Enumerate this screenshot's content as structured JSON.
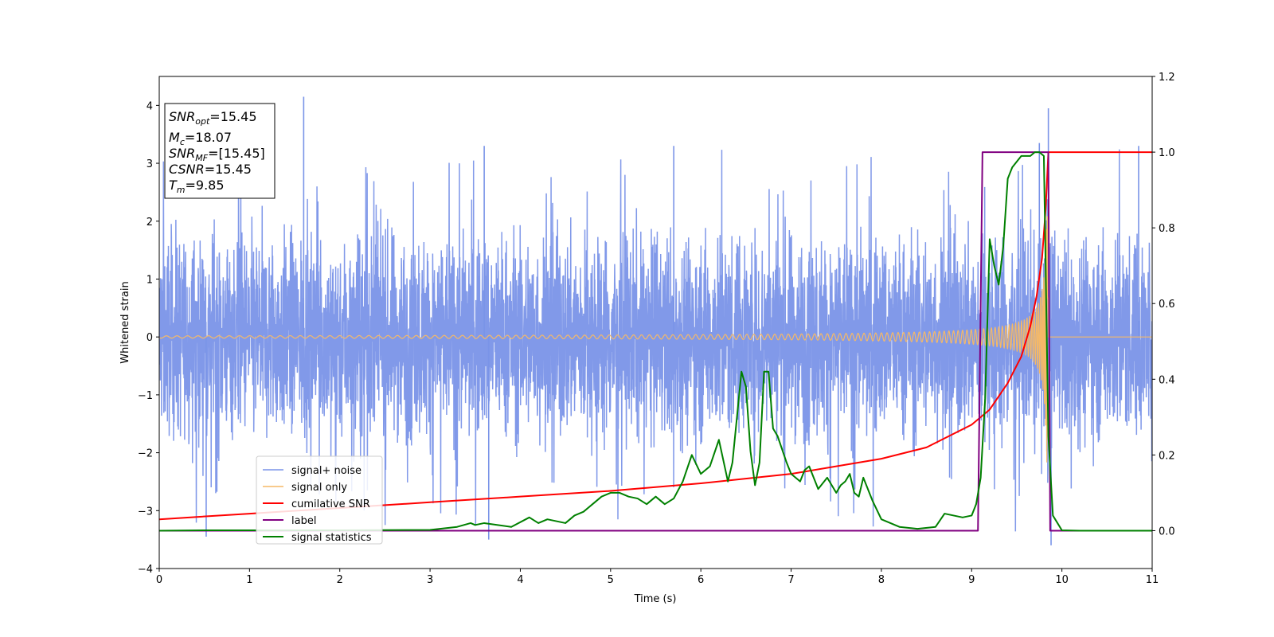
{
  "chart_data": {
    "type": "line",
    "xlabel": "Time (s)",
    "ylabel": "Whitened strain",
    "xlim": [
      0,
      11
    ],
    "ylim_left": [
      -4,
      4.5
    ],
    "ylim_right": [
      -0.1,
      1.2
    ],
    "x_ticks": [
      "0",
      "1",
      "2",
      "3",
      "4",
      "5",
      "6",
      "7",
      "8",
      "9",
      "10",
      "11"
    ],
    "y_ticks_left": [
      "−4",
      "−3",
      "−2",
      "−1",
      "0",
      "1",
      "2",
      "3",
      "4"
    ],
    "y_ticks_right": [
      "0.0",
      "0.2",
      "0.4",
      "0.6",
      "0.8",
      "1.0",
      "1.2"
    ],
    "grid": false,
    "legend_placement": "lower-left",
    "info_box": {
      "snr_opt": {
        "base": "SNR",
        "sub": "opt",
        "value": "=15.45"
      },
      "mc": {
        "base": "M",
        "sub": "c",
        "value": "=18.07"
      },
      "snr_mf": {
        "base": "SNR",
        "sub": "MF",
        "value": "=[15.45]"
      },
      "csnr": {
        "base": "CSNR",
        "sub": "",
        "value": "=15.45"
      },
      "tm": {
        "base": "T",
        "sub": "m",
        "value": "=9.85"
      }
    },
    "series": [
      {
        "name": "signal+ noise",
        "axis": "left",
        "color": "#7a94e8",
        "description_of_shape": "dense noise band approximately between -2.5 and 2.5 with spikes up to about 4.2 and down to about -3.6",
        "noise_band": [
          -2.5,
          2.5
        ],
        "spikes": [
          [
            1.6,
            4.15
          ],
          [
            9.85,
            3.95
          ],
          [
            0.52,
            -3.45
          ],
          [
            3.65,
            -3.5
          ],
          [
            9.88,
            -3.6
          ],
          [
            5.7,
            3.3
          ],
          [
            3.6,
            3.3
          ],
          [
            10.85,
            3.3
          ],
          [
            9.75,
            3.35
          ]
        ]
      },
      {
        "name": "signal only",
        "axis": "left",
        "color": "#f5b967",
        "chirp": {
          "start_amplitude": 0.02,
          "end_time": 9.85,
          "peak_amplitude": 2.2
        }
      },
      {
        "name": "cumilative SNR",
        "axis": "right",
        "color": "#ff0000",
        "x": [
          0,
          1,
          2,
          3,
          4,
          5,
          6,
          7,
          7.5,
          8,
          8.5,
          9,
          9.2,
          9.4,
          9.55,
          9.65,
          9.72,
          9.78,
          9.82,
          9.85,
          11
        ],
        "y": [
          0.03,
          0.045,
          0.06,
          0.075,
          0.09,
          0.105,
          0.125,
          0.15,
          0.17,
          0.19,
          0.22,
          0.28,
          0.32,
          0.39,
          0.46,
          0.54,
          0.62,
          0.72,
          0.85,
          1.0,
          1.0
        ]
      },
      {
        "name": "label",
        "axis": "right",
        "color": "#800080",
        "x": [
          0,
          9.07,
          9.12,
          9.85,
          9.87,
          11
        ],
        "y": [
          0,
          0,
          1,
          1,
          0,
          0
        ]
      },
      {
        "name": "signal statistics",
        "axis": "right",
        "color": "#008000",
        "x": [
          0,
          0.5,
          1,
          2,
          3,
          3.3,
          3.45,
          3.5,
          3.6,
          3.9,
          4.1,
          4.2,
          4.3,
          4.5,
          4.6,
          4.7,
          4.8,
          4.9,
          5.0,
          5.1,
          5.2,
          5.3,
          5.4,
          5.5,
          5.6,
          5.7,
          5.8,
          5.9,
          6.0,
          6.1,
          6.2,
          6.3,
          6.35,
          6.45,
          6.5,
          6.55,
          6.6,
          6.65,
          6.7,
          6.75,
          6.8,
          6.85,
          6.95,
          7.0,
          7.05,
          7.1,
          7.15,
          7.2,
          7.3,
          7.4,
          7.5,
          7.55,
          7.6,
          7.65,
          7.7,
          7.75,
          7.8,
          7.9,
          8.0,
          8.2,
          8.4,
          8.6,
          8.7,
          8.8,
          8.9,
          9.0,
          9.05,
          9.1,
          9.15,
          9.2,
          9.25,
          9.3,
          9.35,
          9.4,
          9.45,
          9.55,
          9.65,
          9.7,
          9.75,
          9.8,
          9.85,
          9.9,
          10.0,
          10.2,
          11
        ],
        "y": [
          0,
          0.001,
          0.001,
          0.001,
          0.002,
          0.01,
          0.02,
          0.015,
          0.02,
          0.01,
          0.035,
          0.02,
          0.03,
          0.02,
          0.04,
          0.05,
          0.07,
          0.09,
          0.1,
          0.1,
          0.09,
          0.085,
          0.07,
          0.09,
          0.07,
          0.085,
          0.13,
          0.2,
          0.15,
          0.17,
          0.24,
          0.13,
          0.18,
          0.42,
          0.38,
          0.21,
          0.12,
          0.18,
          0.42,
          0.42,
          0.27,
          0.25,
          0.18,
          0.15,
          0.14,
          0.13,
          0.16,
          0.17,
          0.11,
          0.14,
          0.1,
          0.12,
          0.13,
          0.15,
          0.1,
          0.09,
          0.14,
          0.08,
          0.03,
          0.01,
          0.005,
          0.01,
          0.045,
          0.04,
          0.035,
          0.04,
          0.07,
          0.14,
          0.35,
          0.77,
          0.7,
          0.65,
          0.75,
          0.93,
          0.96,
          0.99,
          0.99,
          1.0,
          1.0,
          0.99,
          0.25,
          0.04,
          0.001,
          0.0,
          0.0
        ]
      }
    ]
  }
}
